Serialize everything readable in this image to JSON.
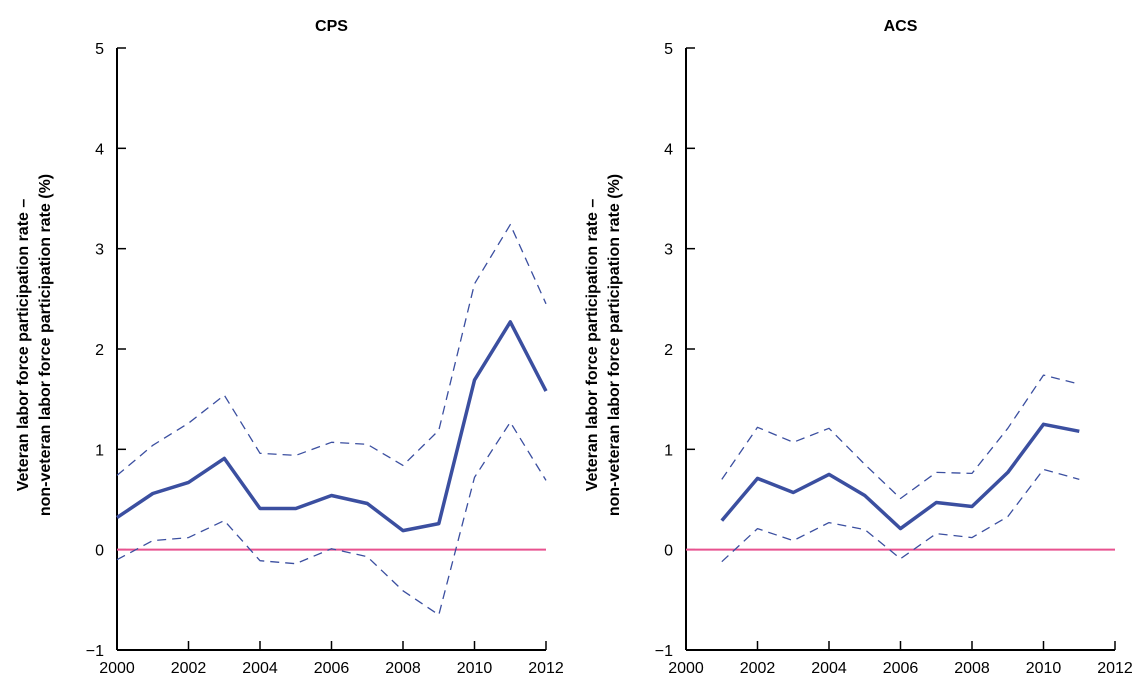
{
  "chart_data": [
    {
      "type": "line",
      "title": "CPS",
      "xlabel": "",
      "ylabel": "Veteran labor force participation rate –\nnon-veteran labor force participation rate (%)",
      "xlim": [
        2000,
        2012
      ],
      "ylim": [
        -1,
        5
      ],
      "xticks": [
        2000,
        2002,
        2004,
        2006,
        2008,
        2010,
        2012
      ],
      "yticks": [
        -1,
        0,
        1,
        2,
        3,
        4,
        5
      ],
      "grid": false,
      "x": [
        2000,
        2001,
        2002,
        2003,
        2004,
        2005,
        2006,
        2007,
        2008,
        2009,
        2010,
        2011,
        2012
      ],
      "reference_line": {
        "y": 0,
        "color": "#e8528f"
      },
      "series": [
        {
          "role": "estimate",
          "style": "solid",
          "color": "#3b4fa0",
          "values": [
            0.32,
            0.56,
            0.67,
            0.91,
            0.41,
            0.41,
            0.54,
            0.46,
            0.19,
            0.26,
            1.69,
            2.27,
            1.58
          ]
        },
        {
          "role": "upper",
          "style": "dashed",
          "color": "#3b4fa0",
          "values": [
            0.74,
            1.04,
            1.26,
            1.54,
            0.96,
            0.94,
            1.07,
            1.05,
            0.84,
            1.19,
            2.65,
            3.24,
            2.45
          ]
        },
        {
          "role": "lower",
          "style": "dashed",
          "color": "#3b4fa0",
          "values": [
            -0.1,
            0.09,
            0.12,
            0.29,
            -0.11,
            -0.14,
            0.01,
            -0.07,
            -0.41,
            -0.65,
            0.72,
            1.27,
            0.69
          ]
        }
      ]
    },
    {
      "type": "line",
      "title": "ACS",
      "xlabel": "",
      "ylabel": "Veteran labor force participation rate –\nnon-veteran labor force participation rate (%)",
      "xlim": [
        2000,
        2012
      ],
      "ylim": [
        -1,
        5
      ],
      "xticks": [
        2000,
        2002,
        2004,
        2006,
        2008,
        2010,
        2012
      ],
      "yticks": [
        -1,
        0,
        1,
        2,
        3,
        4,
        5
      ],
      "grid": false,
      "x": [
        2001,
        2002,
        2003,
        2004,
        2005,
        2006,
        2007,
        2008,
        2009,
        2010,
        2011
      ],
      "reference_line": {
        "y": 0,
        "color": "#e8528f"
      },
      "series": [
        {
          "role": "estimate",
          "style": "solid",
          "color": "#3b4fa0",
          "values": [
            0.29,
            0.71,
            0.57,
            0.75,
            0.54,
            0.21,
            0.47,
            0.43,
            0.77,
            1.25,
            1.18
          ]
        },
        {
          "role": "upper",
          "style": "dashed",
          "color": "#3b4fa0",
          "values": [
            0.7,
            1.22,
            1.07,
            1.21,
            0.85,
            0.51,
            0.77,
            0.76,
            1.21,
            1.74,
            1.65
          ]
        },
        {
          "role": "lower",
          "style": "dashed",
          "color": "#3b4fa0",
          "values": [
            -0.12,
            0.21,
            0.09,
            0.27,
            0.2,
            -0.09,
            0.16,
            0.12,
            0.33,
            0.8,
            0.7
          ]
        }
      ]
    }
  ]
}
